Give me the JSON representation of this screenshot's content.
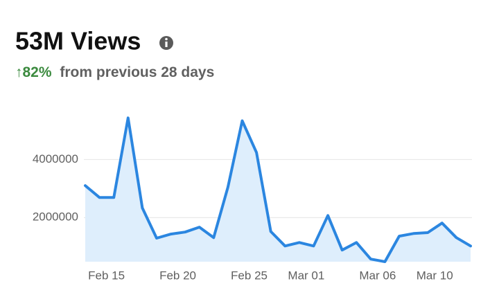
{
  "chart_data": {
    "type": "area-line",
    "title": "53M Views",
    "change": "↑82%",
    "subtitle": "from previous 28 days",
    "categories": [
      null,
      "Feb 15",
      null,
      null,
      null,
      null,
      "Feb 20",
      null,
      null,
      null,
      null,
      "Feb 25",
      null,
      null,
      null,
      "Mar 01",
      null,
      null,
      null,
      null,
      "Mar 06",
      null,
      null,
      null,
      "Mar 10",
      null,
      null,
      null
    ],
    "values": [
      3100000,
      2690000,
      2690000,
      5430000,
      2330000,
      1290000,
      1430000,
      1500000,
      1670000,
      1310000,
      3050000,
      5330000,
      4240000,
      1520000,
      1020000,
      1140000,
      1020000,
      2070000,
      880000,
      1140000,
      570000,
      480000,
      1360000,
      1450000,
      1480000,
      1810000,
      1310000,
      1020000
    ],
    "color": "#2b86e0",
    "fill_color": "#deeefc",
    "ylim": [
      480000,
      5700000
    ],
    "yticks": [
      2000000,
      4000000
    ],
    "grid": true
  }
}
